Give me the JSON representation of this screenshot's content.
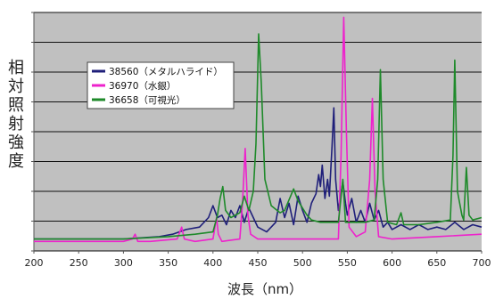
{
  "chart_data": {
    "type": "line",
    "title": "",
    "xlabel": "波長（nm）",
    "ylabel": "相対照射強度",
    "xlim": [
      200,
      700
    ],
    "ylim": [
      0,
      100
    ],
    "xticks": [
      200,
      250,
      300,
      350,
      400,
      450,
      500,
      550,
      600,
      650,
      700
    ],
    "grid": true,
    "legend_position": "top-left",
    "series": [
      {
        "name": "38560（メタルハライド）",
        "color": "#1f1f7a",
        "points": [
          [
            200,
            5
          ],
          [
            300,
            5
          ],
          [
            340,
            6
          ],
          [
            355,
            7
          ],
          [
            370,
            9
          ],
          [
            385,
            10
          ],
          [
            395,
            14
          ],
          [
            400,
            19
          ],
          [
            405,
            14
          ],
          [
            410,
            15
          ],
          [
            415,
            11
          ],
          [
            420,
            17
          ],
          [
            425,
            14
          ],
          [
            430,
            19
          ],
          [
            435,
            12
          ],
          [
            440,
            18
          ],
          [
            445,
            14
          ],
          [
            450,
            10
          ],
          [
            460,
            8
          ],
          [
            470,
            12
          ],
          [
            475,
            22
          ],
          [
            480,
            14
          ],
          [
            485,
            20
          ],
          [
            490,
            11
          ],
          [
            495,
            23
          ],
          [
            500,
            17
          ],
          [
            505,
            12
          ],
          [
            510,
            20
          ],
          [
            515,
            24
          ],
          [
            518,
            32
          ],
          [
            520,
            27
          ],
          [
            522,
            36
          ],
          [
            525,
            22
          ],
          [
            528,
            30
          ],
          [
            530,
            23
          ],
          [
            533,
            44
          ],
          [
            535,
            60
          ],
          [
            537,
            30
          ],
          [
            540,
            17
          ],
          [
            545,
            29
          ],
          [
            548,
            20
          ],
          [
            550,
            15
          ],
          [
            555,
            22
          ],
          [
            560,
            12
          ],
          [
            565,
            17
          ],
          [
            570,
            12
          ],
          [
            575,
            20
          ],
          [
            580,
            13
          ],
          [
            585,
            17
          ],
          [
            590,
            10
          ],
          [
            595,
            12
          ],
          [
            600,
            9
          ],
          [
            610,
            11
          ],
          [
            620,
            9
          ],
          [
            630,
            11
          ],
          [
            640,
            9
          ],
          [
            650,
            10
          ],
          [
            660,
            9
          ],
          [
            670,
            12
          ],
          [
            680,
            9
          ],
          [
            690,
            11
          ],
          [
            700,
            10
          ]
        ]
      },
      {
        "name": "36970（水銀）",
        "color": "#ee22cc",
        "points": [
          [
            200,
            4
          ],
          [
            300,
            4
          ],
          [
            310,
            5
          ],
          [
            313,
            7
          ],
          [
            316,
            4
          ],
          [
            330,
            4
          ],
          [
            360,
            5
          ],
          [
            365,
            10
          ],
          [
            368,
            5
          ],
          [
            380,
            4
          ],
          [
            400,
            5
          ],
          [
            404,
            14
          ],
          [
            406,
            7
          ],
          [
            410,
            4
          ],
          [
            430,
            5
          ],
          [
            433,
            20
          ],
          [
            436,
            43
          ],
          [
            439,
            15
          ],
          [
            442,
            7
          ],
          [
            450,
            5
          ],
          [
            500,
            5
          ],
          [
            540,
            5
          ],
          [
            543,
            40
          ],
          [
            546,
            98
          ],
          [
            549,
            50
          ],
          [
            552,
            10
          ],
          [
            560,
            6
          ],
          [
            570,
            8
          ],
          [
            575,
            30
          ],
          [
            578,
            64
          ],
          [
            581,
            25
          ],
          [
            585,
            6
          ],
          [
            600,
            5
          ],
          [
            650,
            6
          ],
          [
            700,
            7
          ]
        ]
      },
      {
        "name": "36658（可視光）",
        "color": "#1e8a2a",
        "points": [
          [
            200,
            5
          ],
          [
            300,
            5
          ],
          [
            350,
            6
          ],
          [
            380,
            7
          ],
          [
            400,
            8
          ],
          [
            405,
            15
          ],
          [
            408,
            22
          ],
          [
            411,
            27
          ],
          [
            414,
            17
          ],
          [
            420,
            14
          ],
          [
            430,
            16
          ],
          [
            435,
            23
          ],
          [
            440,
            17
          ],
          [
            445,
            25
          ],
          [
            448,
            45
          ],
          [
            451,
            91
          ],
          [
            454,
            70
          ],
          [
            458,
            30
          ],
          [
            465,
            19
          ],
          [
            475,
            16
          ],
          [
            480,
            17
          ],
          [
            490,
            26
          ],
          [
            495,
            21
          ],
          [
            500,
            18
          ],
          [
            505,
            15
          ],
          [
            510,
            13
          ],
          [
            520,
            12
          ],
          [
            530,
            12
          ],
          [
            540,
            12
          ],
          [
            545,
            30
          ],
          [
            548,
            12
          ],
          [
            555,
            12
          ],
          [
            570,
            12
          ],
          [
            580,
            13
          ],
          [
            584,
            30
          ],
          [
            587,
            76
          ],
          [
            590,
            30
          ],
          [
            595,
            12
          ],
          [
            605,
            11
          ],
          [
            610,
            16
          ],
          [
            613,
            11
          ],
          [
            630,
            11
          ],
          [
            650,
            12
          ],
          [
            665,
            13
          ],
          [
            668,
            40
          ],
          [
            670,
            80
          ],
          [
            673,
            25
          ],
          [
            678,
            15
          ],
          [
            680,
            13
          ],
          [
            683,
            35
          ],
          [
            686,
            15
          ],
          [
            690,
            13
          ],
          [
            700,
            14
          ]
        ]
      }
    ]
  }
}
